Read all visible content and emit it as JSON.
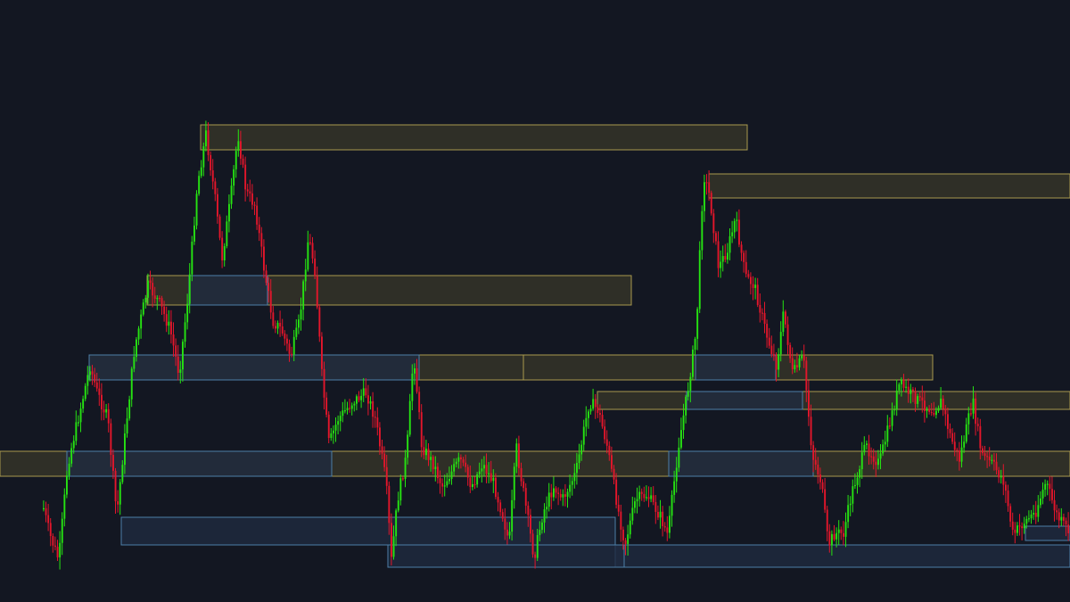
{
  "colors": {
    "background": "#131722",
    "bull": "#26e312",
    "bear": "#e3162b",
    "supply_fill": "#3a382a",
    "supply_stroke": "#a89a4e",
    "demand_fill": "#1f2a40",
    "demand_stroke": "#4d7fa8"
  },
  "chart_data": {
    "type": "candlestick",
    "grid": false,
    "axes_visible": false,
    "ylim": [
      0,
      675
    ],
    "waypoints": [
      [
        48,
        570
      ],
      [
        55,
        600
      ],
      [
        65,
        628
      ],
      [
        75,
        520
      ],
      [
        90,
        455
      ],
      [
        100,
        410
      ],
      [
        108,
        440
      ],
      [
        120,
        470
      ],
      [
        130,
        578
      ],
      [
        138,
        500
      ],
      [
        150,
        390
      ],
      [
        165,
        320
      ],
      [
        178,
        340
      ],
      [
        190,
        370
      ],
      [
        200,
        420
      ],
      [
        210,
        330
      ],
      [
        220,
        210
      ],
      [
        230,
        150
      ],
      [
        240,
        220
      ],
      [
        248,
        290
      ],
      [
        258,
        220
      ],
      [
        266,
        150
      ],
      [
        275,
        215
      ],
      [
        285,
        230
      ],
      [
        295,
        300
      ],
      [
        305,
        360
      ],
      [
        315,
        370
      ],
      [
        325,
        400
      ],
      [
        335,
        360
      ],
      [
        345,
        265
      ],
      [
        352,
        300
      ],
      [
        360,
        420
      ],
      [
        368,
        498
      ],
      [
        378,
        470
      ],
      [
        395,
        450
      ],
      [
        410,
        440
      ],
      [
        420,
        470
      ],
      [
        432,
        540
      ],
      [
        438,
        628
      ],
      [
        445,
        560
      ],
      [
        455,
        510
      ],
      [
        463,
        395
      ],
      [
        472,
        500
      ],
      [
        485,
        520
      ],
      [
        495,
        545
      ],
      [
        505,
        530
      ],
      [
        515,
        515
      ],
      [
        528,
        545
      ],
      [
        540,
        520
      ],
      [
        552,
        540
      ],
      [
        563,
        578
      ],
      [
        570,
        610
      ],
      [
        578,
        500
      ],
      [
        585,
        545
      ],
      [
        598,
        625
      ],
      [
        608,
        575
      ],
      [
        620,
        545
      ],
      [
        630,
        560
      ],
      [
        645,
        530
      ],
      [
        660,
        450
      ],
      [
        670,
        460
      ],
      [
        680,
        500
      ],
      [
        692,
        570
      ],
      [
        700,
        610
      ],
      [
        712,
        560
      ],
      [
        725,
        555
      ],
      [
        740,
        580
      ],
      [
        748,
        600
      ],
      [
        760,
        500
      ],
      [
        770,
        440
      ],
      [
        780,
        370
      ],
      [
        788,
        195
      ],
      [
        795,
        220
      ],
      [
        805,
        300
      ],
      [
        815,
        280
      ],
      [
        824,
        245
      ],
      [
        835,
        310
      ],
      [
        845,
        320
      ],
      [
        860,
        380
      ],
      [
        870,
        410
      ],
      [
        878,
        350
      ],
      [
        888,
        420
      ],
      [
        900,
        400
      ],
      [
        910,
        510
      ],
      [
        920,
        540
      ],
      [
        928,
        612
      ],
      [
        935,
        598
      ],
      [
        945,
        598
      ],
      [
        955,
        550
      ],
      [
        970,
        500
      ],
      [
        985,
        520
      ],
      [
        998,
        470
      ],
      [
        1008,
        430
      ],
      [
        1018,
        440
      ],
      [
        1030,
        450
      ],
      [
        1045,
        460
      ],
      [
        1055,
        450
      ],
      [
        1065,
        490
      ],
      [
        1075,
        515
      ],
      [
        1090,
        450
      ],
      [
        1100,
        510
      ],
      [
        1112,
        520
      ],
      [
        1125,
        540
      ],
      [
        1135,
        600
      ],
      [
        1148,
        585
      ],
      [
        1160,
        575
      ],
      [
        1172,
        540
      ],
      [
        1185,
        580
      ],
      [
        1198,
        596
      ]
    ],
    "zones": [
      {
        "kind": "supply",
        "x1": 225,
        "x2": 838,
        "y1": 140,
        "y2": 168
      },
      {
        "kind": "supply",
        "x1": 795,
        "x2": 1200,
        "y1": 195,
        "y2": 222
      },
      {
        "kind": "supply",
        "x1": 165,
        "x2": 708,
        "y1": 309,
        "y2": 342
      },
      {
        "kind": "supply",
        "x1": 100,
        "x2": 587,
        "y1": 398,
        "y2": 426
      },
      {
        "kind": "supply",
        "x1": 587,
        "x2": 1046,
        "y1": 398,
        "y2": 426
      },
      {
        "kind": "supply",
        "x1": 670,
        "x2": 1200,
        "y1": 439,
        "y2": 459
      },
      {
        "kind": "supply",
        "x1": 0,
        "x2": 1200,
        "y1": 506,
        "y2": 534
      },
      {
        "kind": "demand",
        "x1": 212,
        "x2": 300,
        "y1": 309,
        "y2": 342
      },
      {
        "kind": "demand",
        "x1": 100,
        "x2": 470,
        "y1": 398,
        "y2": 426
      },
      {
        "kind": "demand",
        "x1": 780,
        "x2": 870,
        "y1": 398,
        "y2": 426
      },
      {
        "kind": "demand",
        "x1": 770,
        "x2": 900,
        "y1": 439,
        "y2": 459
      },
      {
        "kind": "demand",
        "x1": 75,
        "x2": 372,
        "y1": 506,
        "y2": 534
      },
      {
        "kind": "demand",
        "x1": 750,
        "x2": 912,
        "y1": 506,
        "y2": 534
      },
      {
        "kind": "demand",
        "x1": 136,
        "x2": 690,
        "y1": 580,
        "y2": 611
      },
      {
        "kind": "demand",
        "x1": 690,
        "x2": 1200,
        "y1": 611,
        "y2": 636
      },
      {
        "kind": "demand",
        "x1": 435,
        "x2": 700,
        "y1": 611,
        "y2": 636
      },
      {
        "kind": "demand",
        "x1": 1150,
        "x2": 1200,
        "y1": 590,
        "y2": 606
      }
    ]
  }
}
